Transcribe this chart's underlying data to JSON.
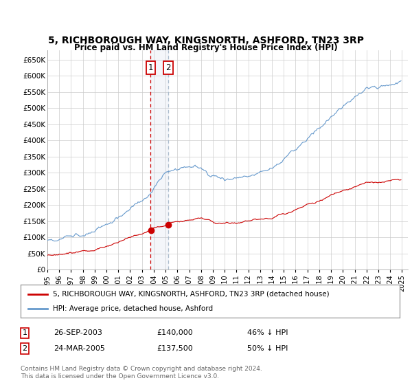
{
  "title": "5, RICHBOROUGH WAY, KINGSNORTH, ASHFORD, TN23 3RP",
  "subtitle": "Price paid vs. HM Land Registry's House Price Index (HPI)",
  "ylim": [
    0,
    680000
  ],
  "yticks": [
    0,
    50000,
    100000,
    150000,
    200000,
    250000,
    300000,
    350000,
    400000,
    450000,
    500000,
    550000,
    600000,
    650000
  ],
  "ytick_labels": [
    "£0",
    "£50K",
    "£100K",
    "£150K",
    "£200K",
    "£250K",
    "£300K",
    "£350K",
    "£400K",
    "£450K",
    "£500K",
    "£550K",
    "£600K",
    "£650K"
  ],
  "sale1_date_num": 2003.74,
  "sale1_price": 140000,
  "sale1_label": "1",
  "sale1_date_str": "26-SEP-2003",
  "sale1_pct": "46% ↓ HPI",
  "sale2_date_num": 2005.23,
  "sale2_price": 137500,
  "sale2_label": "2",
  "sale2_date_str": "24-MAR-2005",
  "sale2_pct": "50% ↓ HPI",
  "red_line_color": "#cc0000",
  "blue_line_color": "#6699cc",
  "vline_color_1": "#cc0000",
  "vline_color_2": "#aabbcc",
  "marker_box_color": "#cc0000",
  "legend_label_red": "5, RICHBOROUGH WAY, KINGSNORTH, ASHFORD, TN23 3RP (detached house)",
  "legend_label_blue": "HPI: Average price, detached house, Ashford",
  "footnote": "Contains HM Land Registry data © Crown copyright and database right 2024.\nThis data is licensed under the Open Government Licence v3.0.",
  "background_color": "#ffffff",
  "grid_color": "#cccccc",
  "xmin": 1995,
  "xmax": 2025.5,
  "sale1_red_val": 140000,
  "sale2_red_val": 137500
}
